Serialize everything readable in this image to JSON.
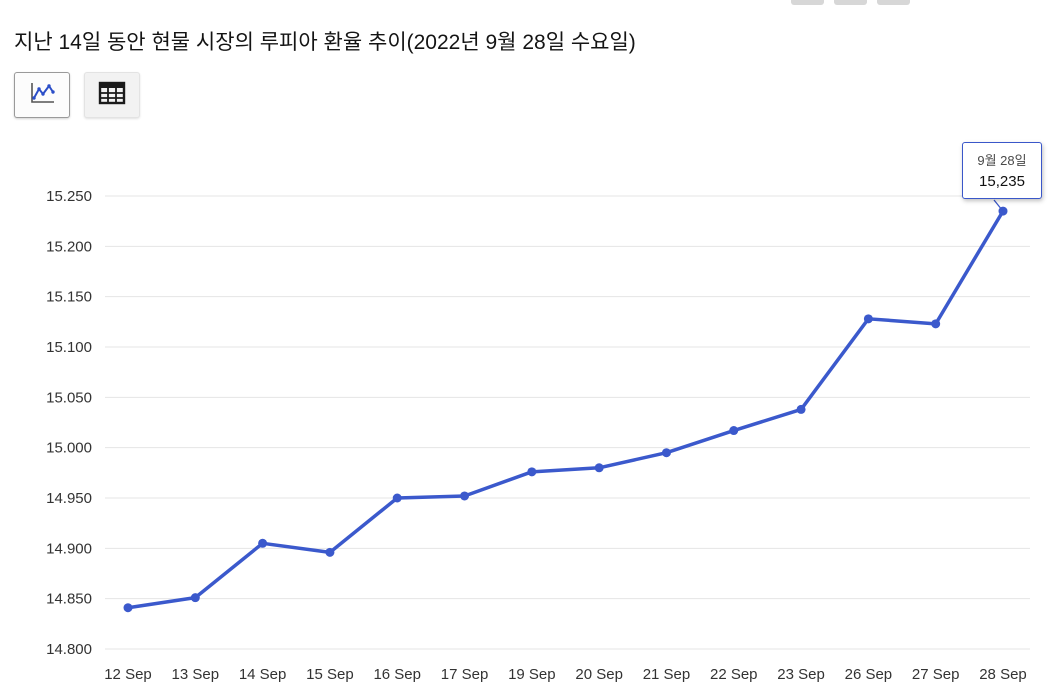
{
  "header": {
    "title": "지난 14일 동안 현물 시장의 루피아 환율 추이(2022년 9월 28일 수요일)"
  },
  "view_toggle": {
    "chart_button_icon": "line-chart-icon",
    "table_button_icon": "table-icon",
    "selected": "chart"
  },
  "colors": {
    "grid": "#e4e4e4",
    "axis_text": "#333333",
    "tooltip_border": "#3A57C9"
  },
  "chart_data": {
    "type": "line",
    "title": "지난 14일 동안 현물 시장의 루피아 환율 추이(2022년 9월 28일 수요일)",
    "categories": [
      "12 Sep",
      "13 Sep",
      "14 Sep",
      "15 Sep",
      "16 Sep",
      "17 Sep",
      "19 Sep",
      "20 Sep",
      "21 Sep",
      "22 Sep",
      "23 Sep",
      "26 Sep",
      "27 Sep",
      "28 Sep"
    ],
    "values": [
      14841,
      14851,
      14905,
      14896,
      14950,
      14952,
      14976,
      14980,
      14995,
      15017,
      15038,
      15128,
      15123,
      15235
    ],
    "xlabel": "",
    "ylabel": "",
    "ylim": [
      14800,
      15250
    ],
    "ytick_step": 50,
    "ytick_labels": [
      "14.800",
      "14.850",
      "14.900",
      "14.950",
      "15.000",
      "15.050",
      "15.100",
      "15.150",
      "15.200",
      "15.250"
    ],
    "grid": true,
    "legend": "none",
    "line_color": "#3B59CC",
    "point_color": "#3B59CC",
    "tooltip": {
      "date_label": "9월 28일",
      "value_label": "15,235",
      "point_index": 13
    }
  }
}
